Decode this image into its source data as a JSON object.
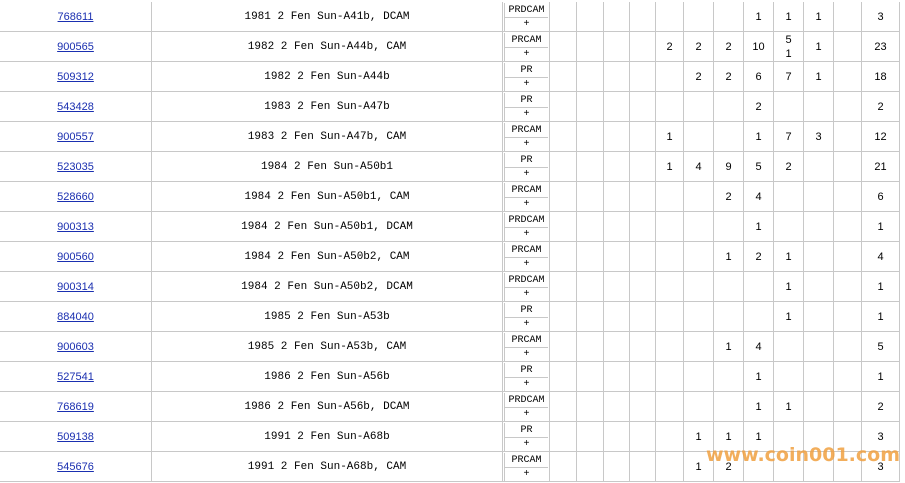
{
  "table": {
    "rows": [
      {
        "id": "768611",
        "description": "1981 2 Fen Sun-A41b, DCAM",
        "grade": "PRDCAM",
        "grade_sub": "+",
        "counts": [
          null,
          null,
          null,
          null,
          null,
          null,
          null,
          1,
          1,
          1,
          null
        ],
        "total": 3
      },
      {
        "id": "900565",
        "description": "1982 2 Fen Sun-A44b, CAM",
        "grade": "PRCAM",
        "grade_sub": "+",
        "counts": [
          null,
          null,
          null,
          null,
          2,
          2,
          2,
          10,
          [
            5,
            1
          ],
          1,
          null
        ],
        "total": 23
      },
      {
        "id": "509312",
        "description": "1982 2 Fen Sun-A44b",
        "grade": "PR",
        "grade_sub": "+",
        "counts": [
          null,
          null,
          null,
          null,
          null,
          2,
          2,
          6,
          7,
          1,
          null
        ],
        "total": 18
      },
      {
        "id": "543428",
        "description": "1983 2 Fen Sun-A47b",
        "grade": "PR",
        "grade_sub": "+",
        "counts": [
          null,
          null,
          null,
          null,
          null,
          null,
          null,
          2,
          null,
          null,
          null
        ],
        "total": 2
      },
      {
        "id": "900557",
        "description": "1983 2 Fen Sun-A47b, CAM",
        "grade": "PRCAM",
        "grade_sub": "+",
        "counts": [
          null,
          null,
          null,
          null,
          1,
          null,
          null,
          1,
          7,
          3,
          null
        ],
        "total": 12
      },
      {
        "id": "523035",
        "description": "1984 2 Fen Sun-A50b1",
        "grade": "PR",
        "grade_sub": "+",
        "counts": [
          null,
          null,
          null,
          null,
          1,
          4,
          9,
          5,
          2,
          null,
          null
        ],
        "total": 21
      },
      {
        "id": "528660",
        "description": "1984 2 Fen Sun-A50b1, CAM",
        "grade": "PRCAM",
        "grade_sub": "+",
        "counts": [
          null,
          null,
          null,
          null,
          null,
          null,
          2,
          4,
          null,
          null,
          null
        ],
        "total": 6
      },
      {
        "id": "900313",
        "description": "1984 2 Fen Sun-A50b1, DCAM",
        "grade": "PRDCAM",
        "grade_sub": "+",
        "counts": [
          null,
          null,
          null,
          null,
          null,
          null,
          null,
          1,
          null,
          null,
          null
        ],
        "total": 1
      },
      {
        "id": "900560",
        "description": "1984 2 Fen Sun-A50b2, CAM",
        "grade": "PRCAM",
        "grade_sub": "+",
        "counts": [
          null,
          null,
          null,
          null,
          null,
          null,
          1,
          2,
          1,
          null,
          null
        ],
        "total": 4
      },
      {
        "id": "900314",
        "description": "1984 2 Fen Sun-A50b2, DCAM",
        "grade": "PRDCAM",
        "grade_sub": "+",
        "counts": [
          null,
          null,
          null,
          null,
          null,
          null,
          null,
          null,
          1,
          null,
          null
        ],
        "total": 1
      },
      {
        "id": "884040",
        "description": "1985 2 Fen Sun-A53b",
        "grade": "PR",
        "grade_sub": "+",
        "counts": [
          null,
          null,
          null,
          null,
          null,
          null,
          null,
          null,
          1,
          null,
          null
        ],
        "total": 1
      },
      {
        "id": "900603",
        "description": "1985 2 Fen Sun-A53b, CAM",
        "grade": "PRCAM",
        "grade_sub": "+",
        "counts": [
          null,
          null,
          null,
          null,
          null,
          null,
          1,
          4,
          null,
          null,
          null
        ],
        "total": 5
      },
      {
        "id": "527541",
        "description": "1986 2 Fen Sun-A56b",
        "grade": "PR",
        "grade_sub": "+",
        "counts": [
          null,
          null,
          null,
          null,
          null,
          null,
          null,
          1,
          null,
          null,
          null
        ],
        "total": 1
      },
      {
        "id": "768619",
        "description": "1986 2 Fen Sun-A56b, DCAM",
        "grade": "PRDCAM",
        "grade_sub": "+",
        "counts": [
          null,
          null,
          null,
          null,
          null,
          null,
          null,
          1,
          1,
          null,
          null
        ],
        "total": 2
      },
      {
        "id": "509138",
        "description": "1991 2 Fen Sun-A68b",
        "grade": "PR",
        "grade_sub": "+",
        "counts": [
          null,
          null,
          null,
          null,
          null,
          1,
          1,
          1,
          null,
          null,
          null
        ],
        "total": 3
      },
      {
        "id": "545676",
        "description": "1991 2 Fen Sun-A68b, CAM",
        "grade": "PRCAM",
        "grade_sub": "+",
        "counts": [
          null,
          null,
          null,
          null,
          null,
          1,
          2,
          null,
          null,
          null,
          null
        ],
        "total": 3
      }
    ]
  },
  "watermark": "www.coin001.com"
}
